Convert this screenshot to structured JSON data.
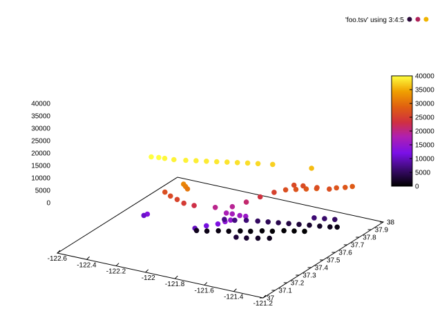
{
  "chart_data": {
    "type": "scatter",
    "projection": "3d",
    "title": "",
    "xlabel": "",
    "ylabel": "",
    "zlabel": "",
    "legend": {
      "label": "'foo.tsv' using 3:4:5",
      "placement": "top-right",
      "colors": [
        "#2a0a3a",
        "#b0235a",
        "#f0b400"
      ]
    },
    "xlim": [
      -122.6,
      -121.3
    ],
    "ylim": [
      37,
      38
    ],
    "zlim": [
      0,
      40000
    ],
    "xticks": [
      "-122.6",
      "-122.4",
      "-122.2",
      "-122",
      "-121.8",
      "-121.6",
      "-121.4",
      "-121.2"
    ],
    "yticks": [
      "37",
      "37.1",
      "37.2",
      "37.3",
      "37.4",
      "37.5",
      "37.6",
      "37.7",
      "37.8",
      "37.9",
      "38"
    ],
    "zticks": [
      "0",
      "5000",
      "10000",
      "15000",
      "20000",
      "25000",
      "30000",
      "35000",
      "40000"
    ],
    "colorbar": {
      "range": [
        0,
        40000
      ],
      "ticks": [
        "0",
        "5000",
        "10000",
        "15000",
        "20000",
        "25000",
        "30000",
        "35000",
        "40000"
      ],
      "palette": [
        "#000000",
        "#3a0a6e",
        "#7a10e8",
        "#b020b0",
        "#d03040",
        "#e06010",
        "#f0a000",
        "#ffff40"
      ]
    },
    "series": [
      {
        "points": [
          [
            -122.5,
            37.65,
            40000
          ],
          [
            -122.46,
            37.66,
            40000
          ],
          [
            -122.43,
            37.67,
            39500
          ],
          [
            -122.38,
            37.68,
            39300
          ],
          [
            -122.32,
            37.7,
            39200
          ],
          [
            -122.27,
            37.72,
            39000
          ],
          [
            -122.22,
            37.74,
            38800
          ],
          [
            -122.17,
            37.76,
            38600
          ],
          [
            -122.12,
            37.78,
            38400
          ],
          [
            -122.07,
            37.8,
            38200
          ],
          [
            -122.02,
            37.82,
            38000
          ],
          [
            -121.97,
            37.84,
            37700
          ],
          [
            -121.9,
            37.87,
            37200
          ],
          [
            -121.7,
            37.93,
            36000
          ],
          [
            -122.22,
            37.55,
            32000
          ],
          [
            -122.2,
            37.54,
            31300
          ],
          [
            -122.18,
            37.53,
            30500
          ],
          [
            -122.3,
            37.5,
            26500
          ],
          [
            -122.25,
            37.48,
            26000
          ],
          [
            -122.2,
            37.47,
            25200
          ],
          [
            -122.15,
            37.46,
            24200
          ],
          [
            -122.1,
            37.48,
            22500
          ],
          [
            -122.02,
            37.55,
            19000
          ],
          [
            -121.95,
            37.6,
            18500
          ],
          [
            -121.9,
            37.65,
            20500
          ],
          [
            -121.85,
            37.7,
            23000
          ],
          [
            -121.8,
            37.75,
            25000
          ],
          [
            -121.75,
            37.78,
            26500
          ],
          [
            -121.7,
            37.8,
            27000
          ],
          [
            -121.65,
            37.82,
            27500
          ],
          [
            -121.6,
            37.84,
            28000
          ],
          [
            -121.75,
            37.85,
            26000
          ],
          [
            -121.7,
            37.86,
            26200
          ],
          [
            -121.62,
            37.87,
            26400
          ],
          [
            -121.55,
            37.88,
            26600
          ],
          [
            -121.52,
            37.9,
            27200
          ],
          [
            -121.48,
            37.92,
            27400
          ],
          [
            -121.45,
            37.94,
            27800
          ],
          [
            -121.95,
            37.55,
            16500
          ],
          [
            -121.92,
            37.56,
            16000
          ],
          [
            -121.88,
            37.57,
            15200
          ],
          [
            -121.85,
            37.58,
            14800
          ],
          [
            -121.9,
            37.52,
            14000
          ],
          [
            -121.92,
            37.5,
            13500
          ],
          [
            -121.95,
            37.48,
            12000
          ],
          [
            -122.0,
            37.45,
            11000
          ],
          [
            -122.05,
            37.42,
            9500
          ],
          [
            -122.35,
            37.42,
            12500
          ],
          [
            -122.38,
            37.43,
            10000
          ],
          [
            -122.0,
            37.6,
            7000
          ],
          [
            -121.95,
            37.62,
            6500
          ],
          [
            -121.9,
            37.65,
            6000
          ],
          [
            -121.85,
            37.68,
            5000
          ],
          [
            -121.8,
            37.7,
            4500
          ],
          [
            -121.75,
            37.72,
            4000
          ],
          [
            -121.7,
            37.74,
            3500
          ],
          [
            -121.65,
            37.76,
            3000
          ],
          [
            -121.6,
            37.78,
            2500
          ],
          [
            -121.55,
            37.8,
            2000
          ],
          [
            -121.5,
            37.82,
            1500
          ],
          [
            -121.47,
            37.84,
            1000
          ],
          [
            -121.6,
            37.82,
            6000
          ],
          [
            -121.55,
            37.84,
            5500
          ],
          [
            -121.5,
            37.86,
            5000
          ],
          [
            -122.1,
            37.5,
            1500
          ],
          [
            -122.05,
            37.52,
            1200
          ],
          [
            -122.0,
            37.55,
            1000
          ],
          [
            -121.95,
            37.57,
            800
          ],
          [
            -121.9,
            37.6,
            600
          ],
          [
            -121.85,
            37.62,
            500
          ],
          [
            -121.8,
            37.65,
            400
          ],
          [
            -121.75,
            37.67,
            300
          ],
          [
            -121.7,
            37.7,
            200
          ],
          [
            -121.65,
            37.72,
            150
          ],
          [
            -121.6,
            37.74,
            100
          ],
          [
            -121.85,
            37.5,
            3000
          ],
          [
            -121.8,
            37.52,
            2500
          ],
          [
            -121.75,
            37.55,
            2000
          ],
          [
            -121.7,
            37.58,
            1500
          ]
        ]
      }
    ]
  }
}
